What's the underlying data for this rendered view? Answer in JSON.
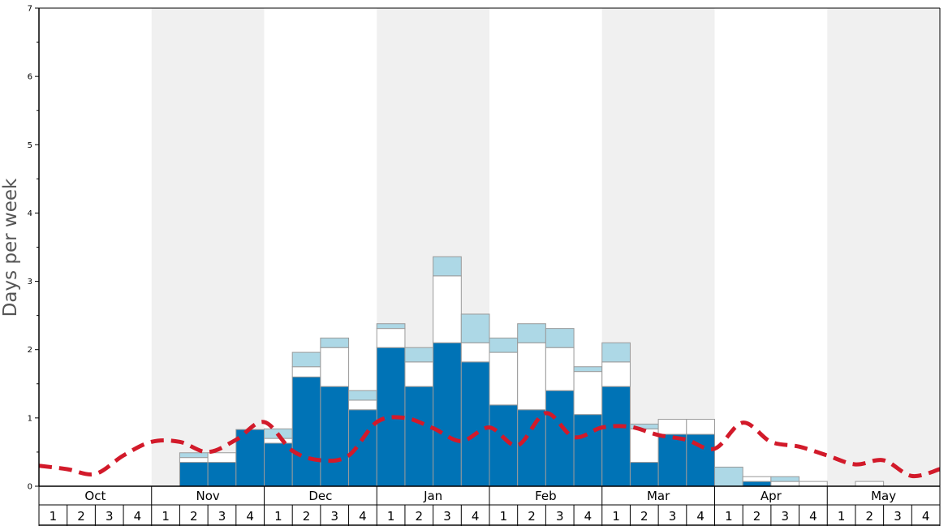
{
  "chart_data": {
    "type": "bar",
    "ylabel": "Days per week",
    "ylim": [
      0,
      7
    ],
    "yticks": [
      "0",
      "1",
      "2",
      "3",
      "4",
      "5",
      "6",
      "7"
    ],
    "months": [
      "Oct",
      "Nov",
      "Dec",
      "Jan",
      "Feb",
      "Mar",
      "Apr",
      "May"
    ],
    "weeks": [
      "1",
      "2",
      "3",
      "4"
    ],
    "shaded_months": [
      "Nov",
      "Jan",
      "Mar",
      "May"
    ],
    "stack_order": [
      "dark",
      "white",
      "light"
    ],
    "colors": {
      "dark": "#0073b6",
      "white": "#ffffff",
      "light": "#add8e6",
      "line": "#d21a2a",
      "shade": "#f0f0f0",
      "bar_edge": "#9a9a9a"
    },
    "series": [
      {
        "key": "dark",
        "values": [
          0,
          0,
          0,
          0,
          0,
          0.35,
          0.35,
          0.83,
          0.63,
          1.6,
          1.46,
          1.12,
          2.03,
          1.46,
          2.1,
          1.82,
          1.19,
          1.12,
          1.4,
          1.05,
          1.46,
          0.35,
          0.76,
          0.76,
          0,
          0.07,
          0,
          0,
          0,
          0,
          0,
          0
        ]
      },
      {
        "key": "white",
        "values": [
          0,
          0,
          0,
          0,
          0,
          0.07,
          0.14,
          0,
          0.07,
          0.15,
          0.57,
          0.14,
          0.28,
          0.36,
          0.98,
          0.28,
          0.77,
          0.98,
          0.63,
          0.63,
          0.36,
          0.49,
          0.22,
          0.22,
          0,
          0.07,
          0.07,
          0.07,
          0,
          0.07,
          0,
          0
        ]
      },
      {
        "key": "light",
        "values": [
          0,
          0,
          0,
          0,
          0,
          0.07,
          0,
          0,
          0.14,
          0.21,
          0.14,
          0.14,
          0.07,
          0.21,
          0.28,
          0.42,
          0.21,
          0.28,
          0.28,
          0.07,
          0.28,
          0.07,
          0,
          0,
          0.28,
          0,
          0.07,
          0,
          0,
          0,
          0,
          0
        ]
      }
    ],
    "line": {
      "style": "dashed",
      "values": [
        0.3,
        0.25,
        0.18,
        0.45,
        0.65,
        0.65,
        0.5,
        0.68,
        0.94,
        0.52,
        0.38,
        0.45,
        0.94,
        1.0,
        0.85,
        0.66,
        0.86,
        0.6,
        1.07,
        0.72,
        0.86,
        0.87,
        0.75,
        0.68,
        0.55,
        0.93,
        0.65,
        0.58,
        0.45,
        0.32,
        0.38,
        0.15,
        0.25
      ]
    }
  }
}
